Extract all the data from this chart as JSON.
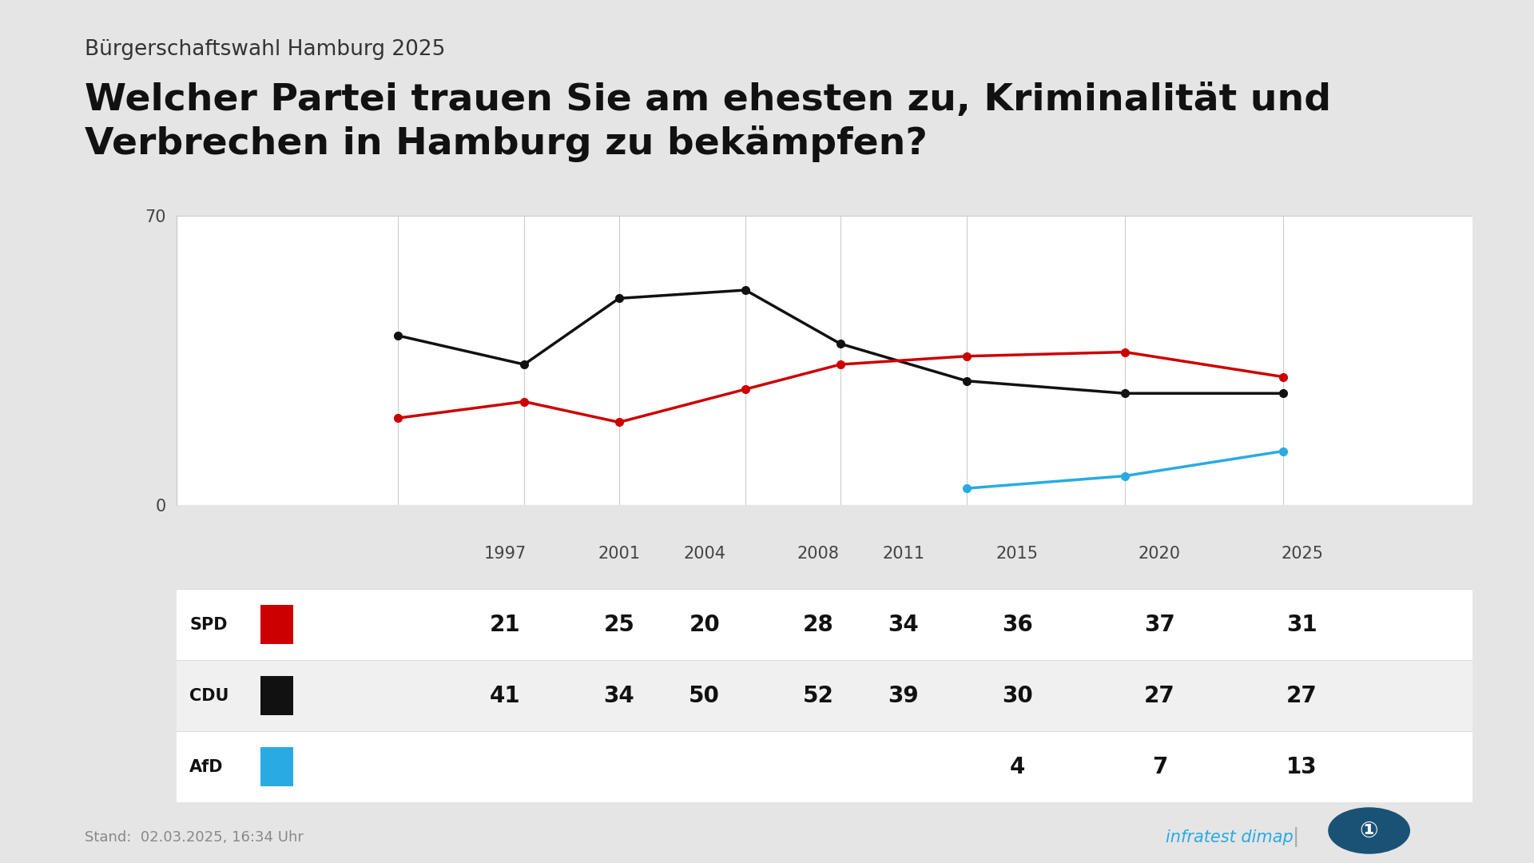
{
  "supertitle": "Bürgerschaftswahl Hamburg 2025",
  "title": "Welcher Partei trauen Sie am ehesten zu, Kriminalität und\nVerbrechen in Hamburg zu bekämpfen?",
  "years": [
    1997,
    2001,
    2004,
    2008,
    2011,
    2015,
    2020,
    2025
  ],
  "spd_values": [
    21,
    25,
    20,
    28,
    34,
    36,
    37,
    31
  ],
  "cdu_values": [
    41,
    34,
    50,
    52,
    39,
    30,
    27,
    27
  ],
  "afd_years": [
    2015,
    2020,
    2025
  ],
  "afd_vals": [
    4,
    7,
    13
  ],
  "afd_year_indices": [
    5,
    6,
    7
  ],
  "spd_color": "#cc0000",
  "cdu_color": "#111111",
  "afd_color": "#29abe2",
  "bg_color": "#e5e5e5",
  "chart_bg": "#ffffff",
  "table_bg": "#ffffff",
  "table_row_alt": "#f0f0f0",
  "grid_color": "#cccccc",
  "ylim": [
    0,
    70
  ],
  "footer": "Stand:  02.03.2025, 16:34 Uhr",
  "source": "infratest dimap"
}
